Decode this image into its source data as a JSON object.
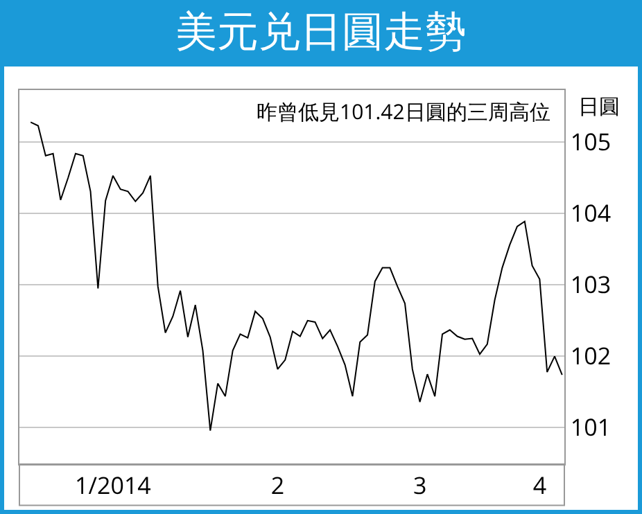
{
  "chart_data": {
    "type": "line",
    "title": "美元兑日圓走勢",
    "ylabel": "日圓",
    "annotations": [
      "昨曾低見101.42日圓的三周高位"
    ],
    "categories": [
      null,
      null,
      null,
      null,
      null,
      null,
      null,
      null,
      null,
      null,
      null,
      "1/2014",
      null,
      null,
      null,
      null,
      null,
      null,
      null,
      null,
      null,
      null,
      null,
      null,
      null,
      null,
      null,
      null,
      null,
      null,
      null,
      null,
      null,
      "2",
      null,
      null,
      null,
      null,
      null,
      null,
      null,
      null,
      null,
      null,
      null,
      null,
      null,
      null,
      null,
      null,
      null,
      null,
      "3",
      null,
      null,
      null,
      null,
      null,
      null,
      null,
      null,
      null,
      null,
      null,
      null,
      null,
      null,
      null,
      "4",
      null,
      null,
      null
    ],
    "series": [
      {
        "color": "#000000",
        "values": [
          105.28,
          105.23,
          104.81,
          104.84,
          104.19,
          104.5,
          104.84,
          104.81,
          104.31,
          102.95,
          104.18,
          104.53,
          104.34,
          104.31,
          104.17,
          104.29,
          104.53,
          102.98,
          102.33,
          102.56,
          102.92,
          102.27,
          102.72,
          102.08,
          100.96,
          101.62,
          101.44,
          102.08,
          102.31,
          102.26,
          102.63,
          102.53,
          102.27,
          101.82,
          101.95,
          102.35,
          102.28,
          102.5,
          102.48,
          102.25,
          102.37,
          102.14,
          101.88,
          101.44,
          102.2,
          102.3,
          103.05,
          103.24,
          103.24,
          102.98,
          102.74,
          101.82,
          101.36,
          101.75,
          101.44,
          102.31,
          102.37,
          102.28,
          102.24,
          102.25,
          102.03,
          102.17,
          102.79,
          103.24,
          103.56,
          103.82,
          103.89,
          103.27,
          103.08,
          101.78,
          102,
          101.74
        ]
      }
    ],
    "ylim": [
      100.49,
      105.73
    ],
    "yticks": [
      101,
      102,
      103,
      104,
      105
    ],
    "grid": "y",
    "marker": "none",
    "line_style": "solid"
  }
}
